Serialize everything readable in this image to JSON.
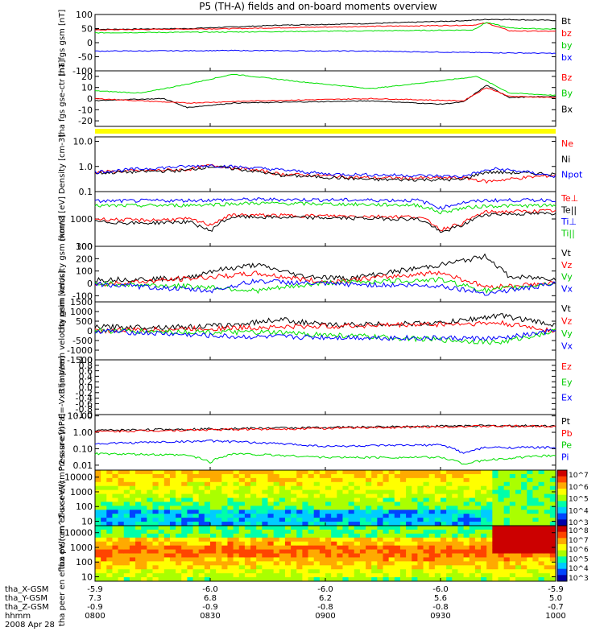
{
  "title": "P5 (TH-A) fields and on-board moments overview",
  "colors": {
    "black": "#000000",
    "red": "#ff0000",
    "green": "#00e000",
    "blue": "#0000ff",
    "yellow": "#ffff00"
  },
  "chart_data": [
    {
      "type": "line",
      "ylabel": "tha fgs gsm [nT]",
      "ylim": [
        -100,
        100
      ],
      "yticks": [
        "100",
        "50",
        "0",
        "-50",
        "-100"
      ],
      "legend": [
        "Bt",
        "bz",
        "by",
        "bx"
      ],
      "series": [
        {
          "name": "Bt",
          "color": "#000000",
          "points": [
            [
              0,
              47
            ],
            [
              0.2,
              50
            ],
            [
              0.4,
              62
            ],
            [
              0.6,
              68
            ],
            [
              0.8,
              78
            ],
            [
              0.86,
              83
            ],
            [
              1,
              79
            ]
          ]
        },
        {
          "name": "bz",
          "color": "#ff0000",
          "points": [
            [
              0,
              45
            ],
            [
              0.3,
              50
            ],
            [
              0.6,
              58
            ],
            [
              0.82,
              62
            ],
            [
              0.85,
              70
            ],
            [
              0.9,
              42
            ],
            [
              1,
              40
            ]
          ]
        },
        {
          "name": "by",
          "color": "#00e000",
          "points": [
            [
              0,
              35
            ],
            [
              0.3,
              38
            ],
            [
              0.6,
              42
            ],
            [
              0.82,
              45
            ],
            [
              0.85,
              72
            ],
            [
              0.9,
              52
            ],
            [
              1,
              48
            ]
          ]
        },
        {
          "name": "bx",
          "color": "#0000ff",
          "points": [
            [
              0,
              -30
            ],
            [
              0.3,
              -28
            ],
            [
              0.6,
              -30
            ],
            [
              0.82,
              -35
            ],
            [
              1,
              -38
            ]
          ]
        }
      ]
    },
    {
      "type": "line",
      "ylabel": "tha fgs gse-ctr [nT]",
      "ylim": [
        -25,
        25
      ],
      "yticks": [
        "20",
        "10",
        "0",
        "-10",
        "-20"
      ],
      "legend": [
        "Bz",
        "By",
        "Bx"
      ],
      "series": [
        {
          "name": "By",
          "color": "#00e000",
          "points": [
            [
              0,
              7
            ],
            [
              0.1,
              5
            ],
            [
              0.2,
              13
            ],
            [
              0.3,
              22
            ],
            [
              0.45,
              15
            ],
            [
              0.6,
              9
            ],
            [
              0.75,
              16
            ],
            [
              0.83,
              20
            ],
            [
              0.9,
              5
            ],
            [
              1,
              3
            ]
          ]
        },
        {
          "name": "Bx",
          "color": "#000000",
          "points": [
            [
              0,
              -2
            ],
            [
              0.05,
              -1
            ],
            [
              0.15,
              0
            ],
            [
              0.2,
              -8
            ],
            [
              0.3,
              -4
            ],
            [
              0.45,
              -3
            ],
            [
              0.6,
              -2
            ],
            [
              0.75,
              -5
            ],
            [
              0.8,
              -3
            ],
            [
              0.85,
              12
            ],
            [
              0.9,
              1
            ],
            [
              1,
              2
            ]
          ]
        },
        {
          "name": "Bz",
          "color": "#ff0000",
          "points": [
            [
              0,
              0
            ],
            [
              0.2,
              -4
            ],
            [
              0.35,
              -2
            ],
            [
              0.6,
              0
            ],
            [
              0.8,
              -2
            ],
            [
              0.85,
              10
            ],
            [
              0.9,
              2
            ],
            [
              1,
              1
            ]
          ]
        }
      ]
    },
    {
      "type": "line",
      "ylabel": "Density [cm-3]",
      "yscale": "log",
      "ylim": [
        0.1,
        15
      ],
      "yticks": [
        "10.0",
        "1.0",
        "0.1"
      ],
      "legend": [
        "Ne",
        "Ni",
        "Npot"
      ],
      "series": [
        {
          "name": "Ne",
          "color": "#ff0000",
          "points": [
            [
              0,
              0.6
            ],
            [
              0.2,
              0.75
            ],
            [
              0.25,
              1.1
            ],
            [
              0.4,
              0.5
            ],
            [
              0.6,
              0.35
            ],
            [
              0.8,
              0.35
            ],
            [
              0.85,
              0.25
            ],
            [
              1,
              0.45
            ]
          ]
        },
        {
          "name": "Ni",
          "color": "#000000",
          "points": [
            [
              0,
              0.55
            ],
            [
              0.2,
              0.7
            ],
            [
              0.25,
              1.0
            ],
            [
              0.4,
              0.45
            ],
            [
              0.6,
              0.3
            ],
            [
              0.8,
              0.3
            ],
            [
              0.85,
              0.6
            ],
            [
              1,
              0.5
            ]
          ]
        },
        {
          "name": "Npot",
          "color": "#0000ff",
          "points": [
            [
              0,
              0.6
            ],
            [
              0.25,
              1.1
            ],
            [
              0.5,
              0.5
            ],
            [
              0.8,
              0.4
            ],
            [
              0.87,
              0.8
            ],
            [
              1,
              0.4
            ]
          ]
        }
      ]
    },
    {
      "type": "line",
      "ylabel": "mom3 [eV]",
      "yscale": "log",
      "ylim": [
        100,
        10000
      ],
      "yticks": [
        "1000",
        "100"
      ],
      "legend": [
        "Te⊥",
        "Te||",
        "Ti⊥",
        "Ti||"
      ],
      "series": [
        {
          "name": "Ti⊥",
          "color": "#0000ff",
          "points": [
            [
              0,
              4500
            ],
            [
              0.2,
              4800
            ],
            [
              0.35,
              5200
            ],
            [
              0.7,
              4800
            ],
            [
              0.75,
              2500
            ],
            [
              0.8,
              4000
            ],
            [
              0.85,
              4800
            ],
            [
              1,
              5000
            ]
          ]
        },
        {
          "name": "Ti||",
          "color": "#00e000",
          "points": [
            [
              0,
              3000
            ],
            [
              0.2,
              3200
            ],
            [
              0.35,
              3800
            ],
            [
              0.7,
              3200
            ],
            [
              0.75,
              1700
            ],
            [
              0.8,
              2500
            ],
            [
              0.85,
              3000
            ],
            [
              1,
              3100
            ]
          ]
        },
        {
          "name": "Te⊥",
          "color": "#ff0000",
          "points": [
            [
              0,
              1000
            ],
            [
              0.1,
              900
            ],
            [
              0.2,
              1000
            ],
            [
              0.25,
              600
            ],
            [
              0.3,
              1400
            ],
            [
              0.5,
              1300
            ],
            [
              0.7,
              1200
            ],
            [
              0.75,
              400
            ],
            [
              0.8,
              700
            ],
            [
              0.85,
              1800
            ],
            [
              1,
              2000
            ]
          ]
        },
        {
          "name": "Te||",
          "color": "#000000",
          "points": [
            [
              0,
              800
            ],
            [
              0.1,
              700
            ],
            [
              0.2,
              800
            ],
            [
              0.25,
              350
            ],
            [
              0.3,
              1200
            ],
            [
              0.5,
              1100
            ],
            [
              0.7,
              1000
            ],
            [
              0.75,
              300
            ],
            [
              0.8,
              600
            ],
            [
              0.85,
              1500
            ],
            [
              1,
              1600
            ]
          ]
        }
      ]
    },
    {
      "type": "line",
      "ylabel": "tha peim velocity gsm [km/s]",
      "ylim": [
        -150,
        300
      ],
      "yticks": [
        "300",
        "200",
        "100",
        "0",
        "-100"
      ],
      "legend": [
        "Vt",
        "Vz",
        "Vy",
        "Vx"
      ],
      "series": [
        {
          "name": "Vt",
          "color": "#000000",
          "points": [
            [
              0,
              30
            ],
            [
              0.2,
              40
            ],
            [
              0.25,
              100
            ],
            [
              0.35,
              150
            ],
            [
              0.45,
              60
            ],
            [
              0.55,
              40
            ],
            [
              0.75,
              150
            ],
            [
              0.85,
              220
            ],
            [
              0.9,
              50
            ],
            [
              1,
              40
            ]
          ]
        },
        {
          "name": "Vz",
          "color": "#ff0000",
          "points": [
            [
              0,
              -10
            ],
            [
              0.25,
              50
            ],
            [
              0.35,
              80
            ],
            [
              0.5,
              10
            ],
            [
              0.75,
              90
            ],
            [
              0.85,
              -30
            ],
            [
              1,
              0
            ]
          ]
        },
        {
          "name": "Vy",
          "color": "#00e000",
          "points": [
            [
              0,
              0
            ],
            [
              0.25,
              -30
            ],
            [
              0.35,
              -60
            ],
            [
              0.5,
              5
            ],
            [
              0.75,
              30
            ],
            [
              0.85,
              -60
            ],
            [
              1,
              5
            ]
          ]
        },
        {
          "name": "Vx",
          "color": "#0000ff",
          "points": [
            [
              0,
              -5
            ],
            [
              0.25,
              -60
            ],
            [
              0.35,
              20
            ],
            [
              0.5,
              -5
            ],
            [
              0.75,
              -20
            ],
            [
              0.85,
              -80
            ],
            [
              1,
              -5
            ]
          ]
        }
      ]
    },
    {
      "type": "line",
      "ylabel": "tha peem velocity gsm [km/s]",
      "ylim": [
        -1500,
        1500
      ],
      "yticks": [
        "1500",
        "1000",
        "500",
        "0",
        "-500",
        "-1000",
        "-1500"
      ],
      "legend": [
        "Vt",
        "Vz",
        "Vy",
        "Vx"
      ],
      "series": [
        {
          "name": "Vt",
          "color": "#000000",
          "points": [
            [
              0,
              200
            ],
            [
              0.2,
              200
            ],
            [
              0.3,
              300
            ],
            [
              0.4,
              600
            ],
            [
              0.5,
              300
            ],
            [
              0.75,
              400
            ],
            [
              0.88,
              800
            ],
            [
              1,
              300
            ]
          ]
        },
        {
          "name": "Vz",
          "color": "#ff0000",
          "points": [
            [
              0,
              0
            ],
            [
              0.4,
              200
            ],
            [
              0.88,
              400
            ],
            [
              1,
              0
            ]
          ]
        },
        {
          "name": "Vy",
          "color": "#00e000",
          "points": [
            [
              0,
              0
            ],
            [
              0.4,
              -100
            ],
            [
              0.88,
              -600
            ],
            [
              1,
              0
            ]
          ]
        },
        {
          "name": "Vx",
          "color": "#0000ff",
          "points": [
            [
              0,
              0
            ],
            [
              0.3,
              -300
            ],
            [
              0.88,
              -400
            ],
            [
              1,
              0
            ]
          ]
        }
      ]
    },
    {
      "type": "line",
      "ylabel": "E=-VxB [mV/m]",
      "ylim": [
        -1,
        1
      ],
      "yticks": [
        "1.0",
        "0.8",
        "0.6",
        "0.4",
        "0.2",
        "0.0",
        "-0.2",
        "-0.4",
        "-0.6",
        "-0.8",
        "-1.0"
      ],
      "legend": [
        "Ez",
        "Ey",
        "Ex"
      ],
      "series": []
    },
    {
      "type": "line",
      "ylabel": "Pressure [nPa]",
      "yscale": "log",
      "ylim": [
        0.005,
        12
      ],
      "yticks": [
        "10.00",
        "1.00",
        "0.10",
        "0.01"
      ],
      "legend": [
        "Pt",
        "Pb",
        "Pe",
        "Pi"
      ],
      "series": [
        {
          "name": "Pt",
          "color": "#000000",
          "points": [
            [
              0,
              1.3
            ],
            [
              0.3,
              1.7
            ],
            [
              0.6,
              2.1
            ],
            [
              0.8,
              2.5
            ],
            [
              1,
              2.5
            ]
          ]
        },
        {
          "name": "Pb",
          "color": "#ff0000",
          "points": [
            [
              0,
              1.1
            ],
            [
              0.3,
              1.5
            ],
            [
              0.6,
              1.9
            ],
            [
              0.8,
              2.3
            ],
            [
              1,
              2.4
            ]
          ]
        },
        {
          "name": "Pi",
          "color": "#0000ff",
          "points": [
            [
              0,
              0.2
            ],
            [
              0.25,
              0.3
            ],
            [
              0.5,
              0.14
            ],
            [
              0.75,
              0.17
            ],
            [
              0.8,
              0.05
            ],
            [
              0.85,
              0.12
            ],
            [
              1,
              0.12
            ]
          ]
        },
        {
          "name": "Pe",
          "color": "#00e000",
          "points": [
            [
              0,
              0.05
            ],
            [
              0.2,
              0.04
            ],
            [
              0.25,
              0.015
            ],
            [
              0.3,
              0.05
            ],
            [
              0.5,
              0.03
            ],
            [
              0.75,
              0.03
            ],
            [
              0.8,
              0.012
            ],
            [
              0.85,
              0.02
            ],
            [
              1,
              0.04
            ]
          ]
        }
      ]
    },
    {
      "type": "heatmap",
      "ylabel": "tha peir en eflux eV/(cm^2-s-sr-eV)",
      "yscale": "log",
      "ylim": [
        5,
        30000
      ],
      "yticks": [
        "10000",
        "1000",
        "100",
        "10"
      ],
      "colorbar": {
        "scale": "log",
        "ticks": [
          "10^7",
          "10^6",
          "10^5",
          "10^4",
          "10^3"
        ]
      }
    },
    {
      "type": "heatmap",
      "ylabel": "tha peer en eflux eV/(cm^2-s-sr-eV)",
      "yscale": "log",
      "ylim": [
        5,
        30000
      ],
      "yticks": [
        "10000",
        "1000",
        "100",
        "10"
      ],
      "colorbar": {
        "scale": "log",
        "ticks": [
          "10^8",
          "10^7",
          "10^6",
          "10^5",
          "10^4",
          "10^3"
        ]
      }
    }
  ],
  "xaxis": {
    "rows": [
      {
        "label": "tha_X-GSM",
        "values": [
          "-5.9",
          "-6.0",
          "-6.0",
          "-6.0",
          "-5.9"
        ]
      },
      {
        "label": "tha_Y-GSM",
        "values": [
          "7.3",
          "6.8",
          "6.2",
          "5.6",
          "5.0"
        ]
      },
      {
        "label": "tha_Z-GSM",
        "values": [
          "-0.9",
          "-0.9",
          "-0.8",
          "-0.8",
          "-0.7"
        ]
      },
      {
        "label": "hhmm",
        "values": [
          "0800",
          "0830",
          "0900",
          "0930",
          "1000"
        ]
      }
    ],
    "date": "2008 Apr 28"
  }
}
